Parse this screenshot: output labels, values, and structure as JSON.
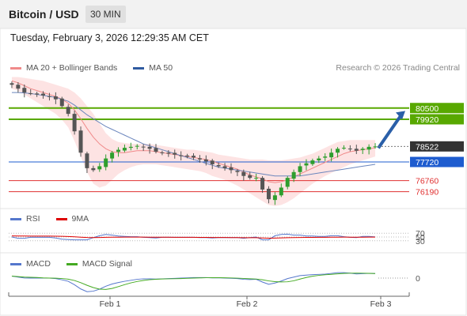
{
  "header": {
    "title": "Bitcoin / USD",
    "timeframe": "30 MIN"
  },
  "datetime": "Tuesday, February 3, 2026 12:29:35 AM CET",
  "copyright": "Research © 2026 Trading Central",
  "legend_main": [
    {
      "label": "MA 20 + Bollinger Bands",
      "color": "#f08a8a"
    },
    {
      "label": "MA 50",
      "color": "#2f5aa0"
    }
  ],
  "legend_rsi": [
    {
      "label": "RSI",
      "color": "#5577cc"
    },
    {
      "label": "9MA",
      "color": "#dd0000"
    }
  ],
  "legend_macd": [
    {
      "label": "MACD",
      "color": "#5577cc"
    },
    {
      "label": "MACD Signal",
      "color": "#44aa22"
    }
  ],
  "chart_data": {
    "type": "candlestick",
    "symbol": "Bitcoin / USD",
    "interval": "30 MIN",
    "x_ticks": [
      "Feb 1",
      "Feb 2",
      "Feb 3"
    ],
    "ylim": [
      75400,
      82200
    ],
    "last_price": 78522,
    "levels": [
      {
        "value": 80500,
        "label": "80500",
        "color": "#58a800",
        "role": "resistance"
      },
      {
        "value": 79920,
        "label": "79920",
        "color": "#58a800",
        "role": "resistance"
      },
      {
        "value": 77720,
        "label": "77720",
        "color": "#1e5ccf",
        "role": "pivot"
      },
      {
        "value": 76760,
        "label": "76760",
        "color": "#e03030",
        "role": "support"
      },
      {
        "value": 76190,
        "label": "76190",
        "color": "#e03030",
        "role": "support"
      }
    ],
    "closes": [
      81700,
      81500,
      81300,
      81250,
      81200,
      81150,
      81100,
      80950,
      80600,
      80200,
      79300,
      78200,
      77400,
      77300,
      77500,
      77900,
      78200,
      78350,
      78450,
      78500,
      78550,
      78500,
      78400,
      78250,
      78200,
      78150,
      78100,
      78050,
      78000,
      77950,
      77850,
      77750,
      77600,
      77500,
      77400,
      77300,
      77200,
      77000,
      76900,
      76900,
      76300,
      75800,
      76000,
      76400,
      76900,
      77200,
      77500,
      77650,
      77800,
      77900,
      78000,
      78200,
      78400,
      78450,
      78400,
      78300,
      78400,
      78500,
      78522
    ],
    "ma20": [
      81900,
      81800,
      81650,
      81500,
      81400,
      81300,
      81200,
      81100,
      80950,
      80750,
      80400,
      79950,
      79450,
      79000,
      78650,
      78400,
      78250,
      78200,
      78200,
      78250,
      78300,
      78300,
      78300,
      78250,
      78200,
      78150,
      78100,
      78050,
      78000,
      77950,
      77900,
      77850,
      77750,
      77650,
      77550,
      77450,
      77350,
      77200,
      77050,
      76950,
      76850,
      76700,
      76650,
      76700,
      76800,
      76950,
      77100,
      77250,
      77400,
      77550,
      77700,
      77850,
      78000,
      78150,
      78250,
      78300,
      78350,
      78400,
      78450
    ],
    "bb_upper": [
      82100,
      82100,
      82050,
      82000,
      81950,
      81900,
      81800,
      81700,
      81600,
      81500,
      81300,
      81000,
      80600,
      80200,
      79700,
      79200,
      78900,
      78750,
      78700,
      78650,
      78650,
      78650,
      78650,
      78600,
      78550,
      78500,
      78450,
      78400,
      78350,
      78350,
      78300,
      78250,
      78200,
      78100,
      78050,
      78000,
      77950,
      77900,
      77850,
      77850,
      77850,
      77800,
      77800,
      77800,
      77850,
      77900,
      77950,
      78050,
      78150,
      78300,
      78450,
      78600,
      78750,
      78800,
      78850,
      78850,
      78850,
      78850,
      78850
    ],
    "bb_lower": [
      81500,
      81400,
      81200,
      81000,
      80800,
      80600,
      80400,
      80200,
      79900,
      79500,
      78800,
      78000,
      77200,
      76600,
      76400,
      76500,
      76800,
      77100,
      77300,
      77450,
      77550,
      77600,
      77600,
      77600,
      77550,
      77500,
      77450,
      77400,
      77350,
      77300,
      77250,
      77150,
      77000,
      76900,
      76800,
      76650,
      76500,
      76300,
      76100,
      75900,
      75700,
      75500,
      75450,
      75500,
      75650,
      75850,
      76100,
      76350,
      76600,
      76800,
      77000,
      77150,
      77300,
      77450,
      77600,
      77700,
      77800,
      77900,
      78000
    ],
    "ma50": [
      81300,
      81300,
      81280,
      81250,
      81200,
      81150,
      81100,
      81050,
      80950,
      80850,
      80650,
      80400,
      80150,
      79950,
      79750,
      79550,
      79400,
      79250,
      79100,
      78950,
      78800,
      78650,
      78550,
      78450,
      78350,
      78250,
      78150,
      78050,
      77950,
      77850,
      77750,
      77650,
      77550,
      77450,
      77400,
      77350,
      77300,
      77250,
      77200,
      77150,
      77100,
      77050,
      77000,
      77000,
      77000,
      77000,
      77000,
      77050,
      77100,
      77150,
      77200,
      77250,
      77300,
      77350,
      77400,
      77450,
      77500,
      77550,
      77600
    ],
    "rsi": {
      "levels": [
        70,
        50,
        30
      ],
      "ylim": [
        0,
        100
      ]
    },
    "macd": {
      "zero_label": "0"
    }
  }
}
